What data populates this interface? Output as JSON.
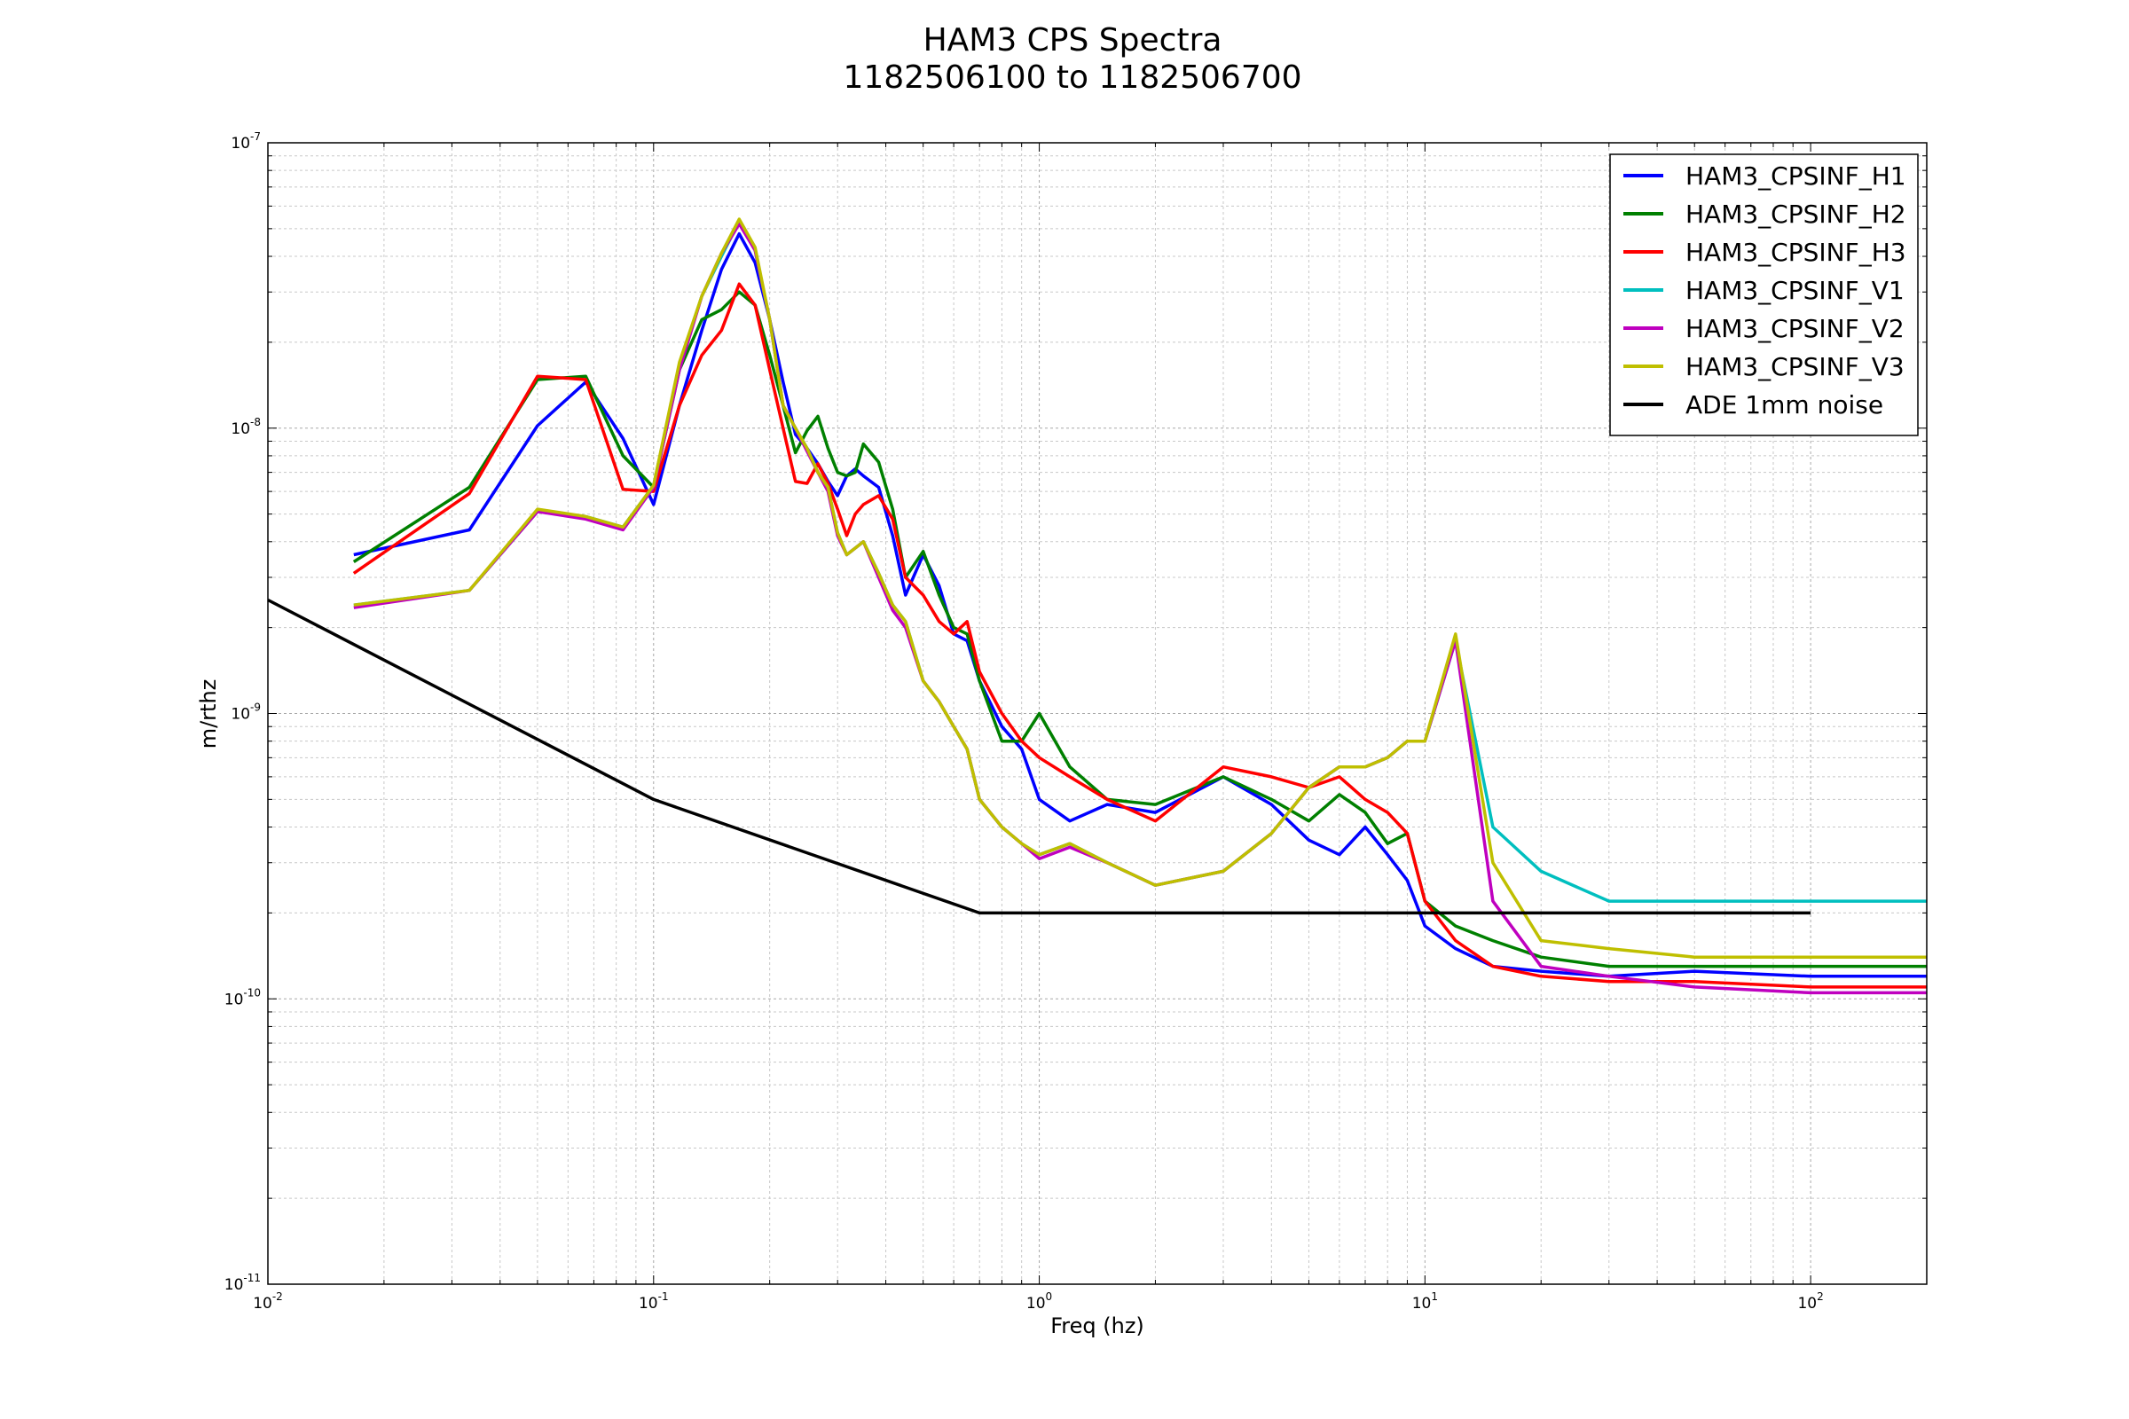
{
  "chart_data": {
    "type": "line",
    "title": "HAM3 CPS Spectra",
    "subtitle": "1182506100 to 1182506700",
    "xlabel": "Freq (hz)",
    "ylabel": "m/rthz",
    "xscale": "log",
    "yscale": "log",
    "xlim": [
      0.01,
      200
    ],
    "ylim": [
      1e-11,
      1e-07
    ],
    "x_ticks": [
      {
        "base": "10",
        "exp": "-2",
        "value": 0.01
      },
      {
        "base": "10",
        "exp": "-1",
        "value": 0.1
      },
      {
        "base": "10",
        "exp": "0",
        "value": 1
      },
      {
        "base": "10",
        "exp": "1",
        "value": 10
      },
      {
        "base": "10",
        "exp": "2",
        "value": 100
      }
    ],
    "y_ticks": [
      {
        "base": "10",
        "exp": "-11",
        "value": 1e-11
      },
      {
        "base": "10",
        "exp": "-10",
        "value": 1e-10
      },
      {
        "base": "10",
        "exp": "-9",
        "value": 1e-09
      },
      {
        "base": "10",
        "exp": "-8",
        "value": 1e-08
      },
      {
        "base": "10",
        "exp": "-7",
        "value": 1e-07
      }
    ],
    "grid": true,
    "legend_position": "top-right",
    "series": [
      {
        "name": "HAM3_CPSINF_H1",
        "color": "#0000ff",
        "x": [
          0.0167,
          0.0333,
          0.05,
          0.0667,
          0.0833,
          0.1,
          0.1167,
          0.1333,
          0.15,
          0.1667,
          0.1833,
          0.2,
          0.2167,
          0.2333,
          0.25,
          0.2667,
          0.2833,
          0.3,
          0.3167,
          0.3333,
          0.35,
          0.3833,
          0.4167,
          0.45,
          0.5,
          0.55,
          0.6,
          0.65,
          0.7,
          0.8,
          0.9,
          1.0,
          1.2,
          1.5,
          2,
          3,
          4,
          5,
          6,
          7,
          8,
          9,
          10,
          12,
          15,
          20,
          30,
          50,
          100,
          200
        ],
        "y": [
          3.6e-09,
          4.4e-09,
          1.02e-08,
          1.45e-08,
          9.2e-09,
          5.4e-09,
          1.2e-08,
          2.2e-08,
          3.6e-08,
          4.8e-08,
          3.8e-08,
          2.4e-08,
          1.45e-08,
          9.5e-09,
          8.5e-09,
          7.5e-09,
          6.5e-09,
          5.8e-09,
          6.8e-09,
          7.2e-09,
          6.8e-09,
          6.2e-09,
          4.2e-09,
          2.6e-09,
          3.6e-09,
          2.8e-09,
          1.9e-09,
          1.8e-09,
          1.3e-09,
          9e-10,
          7.5e-10,
          5e-10,
          4.2e-10,
          4.8e-10,
          4.5e-10,
          6e-10,
          4.8e-10,
          3.6e-10,
          3.2e-10,
          4e-10,
          3.2e-10,
          2.6e-10,
          1.8e-10,
          1.5e-10,
          1.3e-10,
          1.25e-10,
          1.2e-10,
          1.25e-10,
          1.2e-10,
          1.2e-10
        ]
      },
      {
        "name": "HAM3_CPSINF_H2",
        "color": "#008000",
        "x": [
          0.0167,
          0.0333,
          0.05,
          0.0667,
          0.0833,
          0.1,
          0.1167,
          0.1333,
          0.15,
          0.1667,
          0.1833,
          0.2,
          0.2167,
          0.2333,
          0.25,
          0.2667,
          0.2833,
          0.3,
          0.3167,
          0.3333,
          0.35,
          0.3833,
          0.4167,
          0.45,
          0.5,
          0.55,
          0.6,
          0.65,
          0.7,
          0.8,
          0.9,
          1.0,
          1.2,
          1.5,
          2,
          3,
          4,
          5,
          6,
          7,
          8,
          9,
          10,
          12,
          15,
          20,
          30,
          50,
          100,
          200
        ],
        "y": [
          3.4e-09,
          6.2e-09,
          1.48e-08,
          1.52e-08,
          8e-09,
          6.2e-09,
          1.6e-08,
          2.4e-08,
          2.6e-08,
          3e-08,
          2.7e-08,
          1.8e-08,
          1.2e-08,
          8.2e-09,
          9.8e-09,
          1.1e-08,
          8.5e-09,
          7e-09,
          6.8e-09,
          7e-09,
          8.8e-09,
          7.6e-09,
          5.2e-09,
          3e-09,
          3.7e-09,
          2.6e-09,
          2e-09,
          1.9e-09,
          1.3e-09,
          8e-10,
          8e-10,
          1e-09,
          6.5e-10,
          5e-10,
          4.8e-10,
          6e-10,
          5e-10,
          4.2e-10,
          5.2e-10,
          4.5e-10,
          3.5e-10,
          3.8e-10,
          2.2e-10,
          1.8e-10,
          1.6e-10,
          1.4e-10,
          1.3e-10,
          1.3e-10,
          1.3e-10,
          1.3e-10
        ]
      },
      {
        "name": "HAM3_CPSINF_H3",
        "color": "#ff0000",
        "x": [
          0.0167,
          0.0333,
          0.05,
          0.0667,
          0.0833,
          0.1,
          0.1167,
          0.1333,
          0.15,
          0.1667,
          0.1833,
          0.2,
          0.2167,
          0.2333,
          0.25,
          0.2667,
          0.2833,
          0.3,
          0.3167,
          0.3333,
          0.35,
          0.3833,
          0.4167,
          0.45,
          0.5,
          0.55,
          0.6,
          0.65,
          0.7,
          0.8,
          0.9,
          1.0,
          1.2,
          1.5,
          2,
          3,
          4,
          5,
          6,
          7,
          8,
          9,
          10,
          12,
          15,
          20,
          30,
          50,
          100,
          200
        ],
        "y": [
          3.1e-09,
          5.9e-09,
          1.52e-08,
          1.48e-08,
          6.1e-09,
          6e-09,
          1.2e-08,
          1.8e-08,
          2.2e-08,
          3.2e-08,
          2.7e-08,
          1.6e-08,
          1e-08,
          6.5e-09,
          6.4e-09,
          7.5e-09,
          6.4e-09,
          5.2e-09,
          4.2e-09,
          5e-09,
          5.4e-09,
          5.8e-09,
          4.8e-09,
          3e-09,
          2.6e-09,
          2.1e-09,
          1.9e-09,
          2.1e-09,
          1.4e-09,
          1e-09,
          8e-10,
          7e-10,
          6e-10,
          5e-10,
          4.2e-10,
          6.5e-10,
          6e-10,
          5.5e-10,
          6e-10,
          5e-10,
          4.5e-10,
          3.8e-10,
          2.2e-10,
          1.6e-10,
          1.3e-10,
          1.2e-10,
          1.15e-10,
          1.15e-10,
          1.1e-10,
          1.1e-10
        ]
      },
      {
        "name": "HAM3_CPSINF_V1",
        "color": "#00bfbf",
        "x": [
          0.0167,
          0.0333,
          0.05,
          0.0667,
          0.0833,
          0.1,
          0.1167,
          0.1333,
          0.15,
          0.1667,
          0.1833,
          0.2,
          0.2167,
          0.2333,
          0.25,
          0.2667,
          0.2833,
          0.3,
          0.3167,
          0.3333,
          0.35,
          0.3833,
          0.4167,
          0.45,
          0.5,
          0.55,
          0.6,
          0.65,
          0.7,
          0.8,
          0.9,
          1.0,
          1.2,
          1.5,
          2,
          3,
          4,
          5,
          6,
          7,
          8,
          9,
          10,
          12,
          15,
          20,
          30,
          50,
          100,
          200
        ],
        "y": [
          2.4e-09,
          2.7e-09,
          5.1e-09,
          4.9e-09,
          4.5e-09,
          6.3e-09,
          1.65e-08,
          2.9e-08,
          4e-08,
          5.3e-08,
          4.2e-08,
          2.4e-08,
          1.2e-08,
          1e-08,
          8.5e-09,
          7e-09,
          6.2e-09,
          4.3e-09,
          3.6e-09,
          3.8e-09,
          4e-09,
          3.1e-09,
          2.4e-09,
          2.1e-09,
          1.3e-09,
          1.1e-09,
          9e-10,
          7.5e-10,
          5e-10,
          4e-10,
          3.5e-10,
          3.2e-10,
          3.5e-10,
          3e-10,
          2.5e-10,
          2.8e-10,
          3.8e-10,
          5.5e-10,
          6.5e-10,
          6.5e-10,
          7e-10,
          8e-10,
          8e-10,
          1.8e-09,
          4e-10,
          2.8e-10,
          2.2e-10,
          2.2e-10,
          2.2e-10,
          2.2e-10
        ]
      },
      {
        "name": "HAM3_CPSINF_V2",
        "color": "#bf00bf",
        "x": [
          0.0167,
          0.0333,
          0.05,
          0.0667,
          0.0833,
          0.1,
          0.1167,
          0.1333,
          0.15,
          0.1667,
          0.1833,
          0.2,
          0.2167,
          0.2333,
          0.25,
          0.2667,
          0.2833,
          0.3,
          0.3167,
          0.3333,
          0.35,
          0.3833,
          0.4167,
          0.45,
          0.5,
          0.55,
          0.6,
          0.65,
          0.7,
          0.8,
          0.9,
          1.0,
          1.2,
          1.5,
          2,
          3,
          4,
          5,
          6,
          7,
          8,
          9,
          10,
          12,
          15,
          20,
          30,
          50,
          100,
          200
        ],
        "y": [
          2.35e-09,
          2.7e-09,
          5.1e-09,
          4.8e-09,
          4.4e-09,
          6.2e-09,
          1.6e-08,
          2.9e-08,
          4.1e-08,
          5.2e-08,
          4.2e-08,
          2.4e-08,
          1.2e-08,
          1e-08,
          8.3e-09,
          7e-09,
          6e-09,
          4.2e-09,
          3.6e-09,
          3.8e-09,
          4e-09,
          3e-09,
          2.3e-09,
          2e-09,
          1.3e-09,
          1.1e-09,
          9e-10,
          7.5e-10,
          5e-10,
          4e-10,
          3.5e-10,
          3.1e-10,
          3.4e-10,
          3e-10,
          2.5e-10,
          2.8e-10,
          3.8e-10,
          5.5e-10,
          6.5e-10,
          6.5e-10,
          7e-10,
          8e-10,
          8e-10,
          1.8e-09,
          2.2e-10,
          1.3e-10,
          1.2e-10,
          1.1e-10,
          1.05e-10,
          1.05e-10
        ]
      },
      {
        "name": "HAM3_CPSINF_V3",
        "color": "#bfbf00",
        "x": [
          0.0167,
          0.0333,
          0.05,
          0.0667,
          0.0833,
          0.1,
          0.1167,
          0.1333,
          0.15,
          0.1667,
          0.1833,
          0.2,
          0.2167,
          0.2333,
          0.25,
          0.2667,
          0.2833,
          0.3,
          0.3167,
          0.3333,
          0.35,
          0.3833,
          0.4167,
          0.45,
          0.5,
          0.55,
          0.6,
          0.65,
          0.7,
          0.8,
          0.9,
          1.0,
          1.2,
          1.5,
          2,
          3,
          4,
          5,
          6,
          7,
          8,
          9,
          10,
          12,
          15,
          20,
          30,
          50,
          100,
          200
        ],
        "y": [
          2.4e-09,
          2.7e-09,
          5.2e-09,
          4.9e-09,
          4.5e-09,
          6.3e-09,
          1.7e-08,
          2.9e-08,
          4.1e-08,
          5.4e-08,
          4.3e-08,
          2.4e-08,
          1.2e-08,
          1e-08,
          8.5e-09,
          7e-09,
          6.2e-09,
          4.3e-09,
          3.6e-09,
          3.8e-09,
          4e-09,
          3.1e-09,
          2.4e-09,
          2.1e-09,
          1.3e-09,
          1.1e-09,
          9e-10,
          7.5e-10,
          5e-10,
          4e-10,
          3.5e-10,
          3.2e-10,
          3.5e-10,
          3e-10,
          2.5e-10,
          2.8e-10,
          3.8e-10,
          5.5e-10,
          6.5e-10,
          6.5e-10,
          7e-10,
          8e-10,
          8e-10,
          1.9e-09,
          3e-10,
          1.6e-10,
          1.5e-10,
          1.4e-10,
          1.4e-10,
          1.4e-10
        ]
      },
      {
        "name": "ADE 1mm noise",
        "color": "#000000",
        "x": [
          0.01,
          0.1,
          0.7,
          100
        ],
        "y": [
          2.5e-09,
          5e-10,
          2e-10,
          2e-10
        ]
      }
    ]
  }
}
